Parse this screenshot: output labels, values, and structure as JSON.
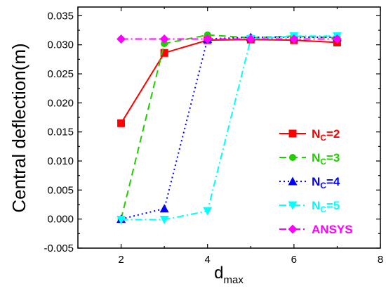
{
  "chart_data": {
    "type": "line",
    "xlabel": "d",
    "xlabel_sub": "max",
    "ylabel": "Central deflection(m)",
    "xlim": [
      1,
      8
    ],
    "ylim": [
      -0.005,
      0.0365
    ],
    "xticks": [
      2,
      4,
      6,
      8
    ],
    "yticks": [
      -0.005,
      0.0,
      0.005,
      0.01,
      0.015,
      0.02,
      0.025,
      0.03,
      0.035
    ],
    "ytick_labels": [
      "-0.005",
      "0.000",
      "0.005",
      "0.010",
      "0.015",
      "0.020",
      "0.025",
      "0.030",
      "0.035"
    ],
    "legend_position": "lower-right",
    "series": [
      {
        "name": "NC=2",
        "label_main": "N",
        "label_sub": "C",
        "label_rest": "=2",
        "color": "#ff0000",
        "dash": "solid",
        "marker": "square",
        "x": [
          2,
          3,
          4,
          5,
          6,
          7
        ],
        "y": [
          0.0165,
          0.0286,
          0.0308,
          0.0309,
          0.0308,
          0.0304
        ]
      },
      {
        "name": "NC=3",
        "label_main": "N",
        "label_sub": "C",
        "label_rest": "=3",
        "color": "#22cc00",
        "dash": "dash",
        "marker": "circle",
        "x": [
          2,
          3,
          4,
          5,
          6,
          7
        ],
        "y": [
          0.0,
          0.0302,
          0.0317,
          0.0312,
          0.0315,
          0.0312
        ]
      },
      {
        "name": "NC=4",
        "label_main": "N",
        "label_sub": "C",
        "label_rest": "=4",
        "color": "#0000ff",
        "dash": "dot",
        "marker": "triangle-up",
        "x": [
          2,
          3,
          4,
          5,
          6,
          7
        ],
        "y": [
          0.0,
          0.0018,
          0.031,
          0.0313,
          0.0313,
          0.0313
        ]
      },
      {
        "name": "NC=5",
        "label_main": "N",
        "label_sub": "C",
        "label_rest": "=5",
        "color": "#00ffff",
        "dash": "dashdot",
        "marker": "triangle-down",
        "x": [
          2,
          3,
          4,
          5,
          6,
          7
        ],
        "y": [
          -0.0001,
          -0.0001,
          0.0014,
          0.031,
          0.0315,
          0.0315
        ]
      },
      {
        "name": "ANSYS",
        "label_main": "ANSYS",
        "label_sub": "",
        "label_rest": "",
        "color": "#ff00ff",
        "dash": "dashdot",
        "marker": "diamond",
        "x": [
          2,
          3,
          4,
          5,
          6,
          7
        ],
        "y": [
          0.031,
          0.031,
          0.031,
          0.031,
          0.031,
          0.031
        ]
      }
    ]
  }
}
